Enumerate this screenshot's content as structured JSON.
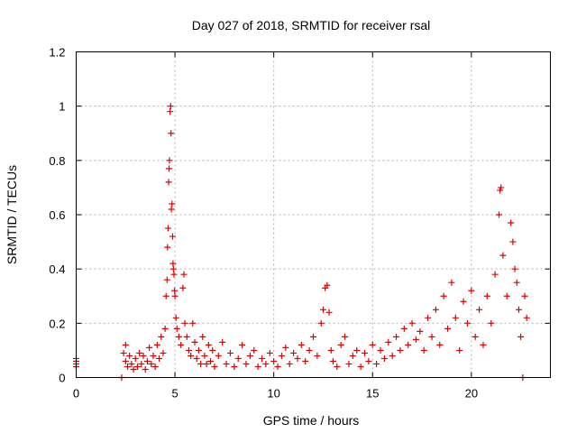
{
  "chart_data": {
    "type": "scatter",
    "title": "Day 027 of 2018, SRMTID for receiver rsal",
    "xlabel": "GPS time / hours",
    "ylabel": "SRMTID / TECUs",
    "xlim": [
      0,
      24
    ],
    "ylim": [
      0,
      1.2
    ],
    "xticks": [
      0,
      5,
      10,
      15,
      20
    ],
    "xtick_labels": [
      "0",
      "5",
      "10",
      "15",
      "20"
    ],
    "yticks": [
      0,
      0.2,
      0.4,
      0.6,
      0.8,
      1.0,
      1.2
    ],
    "ytick_labels": [
      "0",
      "0.2",
      "0.4",
      "0.6",
      "0.8",
      "1",
      "1.2"
    ],
    "grid": true,
    "marker": "+",
    "series": [
      {
        "name": "SRMTID",
        "color": "#e00000",
        "points": [
          [
            0.0,
            0.07
          ],
          [
            0.0,
            0.06
          ],
          [
            0.0,
            0.05
          ],
          [
            0.0,
            0.04
          ],
          [
            2.3,
            0.0
          ],
          [
            2.4,
            0.09
          ],
          [
            2.5,
            0.12
          ],
          [
            2.5,
            0.06
          ],
          [
            2.6,
            0.04
          ],
          [
            2.7,
            0.08
          ],
          [
            2.8,
            0.05
          ],
          [
            2.9,
            0.03
          ],
          [
            3.0,
            0.07
          ],
          [
            3.1,
            0.04
          ],
          [
            3.2,
            0.09
          ],
          [
            3.3,
            0.05
          ],
          [
            3.4,
            0.08
          ],
          [
            3.5,
            0.03
          ],
          [
            3.6,
            0.06
          ],
          [
            3.7,
            0.11
          ],
          [
            3.8,
            0.05
          ],
          [
            3.9,
            0.08
          ],
          [
            4.0,
            0.04
          ],
          [
            4.1,
            0.12
          ],
          [
            4.2,
            0.07
          ],
          [
            4.3,
            0.15
          ],
          [
            4.4,
            0.09
          ],
          [
            4.5,
            0.18
          ],
          [
            4.55,
            0.3
          ],
          [
            4.6,
            0.36
          ],
          [
            4.62,
            0.48
          ],
          [
            4.65,
            0.55
          ],
          [
            4.68,
            0.72
          ],
          [
            4.7,
            0.77
          ],
          [
            4.72,
            0.8
          ],
          [
            4.75,
            0.98
          ],
          [
            4.78,
            1.0
          ],
          [
            4.8,
            0.9
          ],
          [
            4.82,
            0.62
          ],
          [
            4.85,
            0.64
          ],
          [
            4.88,
            0.52
          ],
          [
            4.9,
            0.42
          ],
          [
            4.92,
            0.4
          ],
          [
            4.95,
            0.38
          ],
          [
            4.98,
            0.32
          ],
          [
            5.0,
            0.3
          ],
          [
            5.05,
            0.22
          ],
          [
            5.1,
            0.18
          ],
          [
            5.2,
            0.15
          ],
          [
            5.3,
            0.12
          ],
          [
            5.4,
            0.33
          ],
          [
            5.45,
            0.38
          ],
          [
            5.5,
            0.2
          ],
          [
            5.6,
            0.15
          ],
          [
            5.7,
            0.1
          ],
          [
            5.8,
            0.08
          ],
          [
            5.9,
            0.2
          ],
          [
            6.0,
            0.13
          ],
          [
            6.1,
            0.07
          ],
          [
            6.2,
            0.1
          ],
          [
            6.3,
            0.05
          ],
          [
            6.4,
            0.15
          ],
          [
            6.5,
            0.08
          ],
          [
            6.6,
            0.05
          ],
          [
            6.7,
            0.12
          ],
          [
            6.8,
            0.06
          ],
          [
            6.9,
            0.1
          ],
          [
            7.0,
            0.04
          ],
          [
            7.2,
            0.08
          ],
          [
            7.4,
            0.13
          ],
          [
            7.6,
            0.05
          ],
          [
            7.8,
            0.09
          ],
          [
            8.0,
            0.04
          ],
          [
            8.2,
            0.07
          ],
          [
            8.4,
            0.12
          ],
          [
            8.6,
            0.05
          ],
          [
            8.8,
            0.08
          ],
          [
            9.0,
            0.1
          ],
          [
            9.2,
            0.04
          ],
          [
            9.4,
            0.07
          ],
          [
            9.6,
            0.05
          ],
          [
            9.8,
            0.09
          ],
          [
            10.0,
            0.06
          ],
          [
            10.2,
            0.04
          ],
          [
            10.4,
            0.08
          ],
          [
            10.6,
            0.11
          ],
          [
            10.8,
            0.05
          ],
          [
            11.0,
            0.09
          ],
          [
            11.2,
            0.07
          ],
          [
            11.4,
            0.12
          ],
          [
            11.6,
            0.06
          ],
          [
            11.8,
            0.1
          ],
          [
            12.0,
            0.15
          ],
          [
            12.2,
            0.08
          ],
          [
            12.4,
            0.2
          ],
          [
            12.5,
            0.25
          ],
          [
            12.6,
            0.33
          ],
          [
            12.7,
            0.34
          ],
          [
            12.8,
            0.24
          ],
          [
            12.9,
            0.1
          ],
          [
            13.0,
            0.06
          ],
          [
            13.2,
            0.04
          ],
          [
            13.4,
            0.12
          ],
          [
            13.6,
            0.15
          ],
          [
            13.8,
            0.05
          ],
          [
            14.0,
            0.08
          ],
          [
            14.2,
            0.1
          ],
          [
            14.4,
            0.04
          ],
          [
            14.6,
            0.09
          ],
          [
            14.8,
            0.06
          ],
          [
            15.0,
            0.12
          ],
          [
            15.2,
            0.05
          ],
          [
            15.4,
            0.1
          ],
          [
            15.6,
            0.07
          ],
          [
            15.8,
            0.13
          ],
          [
            16.0,
            0.08
          ],
          [
            16.2,
            0.15
          ],
          [
            16.4,
            0.1
          ],
          [
            16.6,
            0.18
          ],
          [
            16.8,
            0.12
          ],
          [
            17.0,
            0.2
          ],
          [
            17.2,
            0.14
          ],
          [
            17.4,
            0.17
          ],
          [
            17.6,
            0.1
          ],
          [
            17.8,
            0.22
          ],
          [
            18.0,
            0.15
          ],
          [
            18.2,
            0.25
          ],
          [
            18.4,
            0.12
          ],
          [
            18.6,
            0.3
          ],
          [
            18.8,
            0.18
          ],
          [
            19.0,
            0.35
          ],
          [
            19.2,
            0.22
          ],
          [
            19.4,
            0.1
          ],
          [
            19.6,
            0.28
          ],
          [
            19.8,
            0.2
          ],
          [
            20.0,
            0.32
          ],
          [
            20.2,
            0.15
          ],
          [
            20.4,
            0.25
          ],
          [
            20.6,
            0.12
          ],
          [
            20.8,
            0.3
          ],
          [
            21.0,
            0.2
          ],
          [
            21.2,
            0.38
          ],
          [
            21.4,
            0.6
          ],
          [
            21.45,
            0.69
          ],
          [
            21.5,
            0.7
          ],
          [
            21.6,
            0.45
          ],
          [
            21.8,
            0.3
          ],
          [
            22.0,
            0.57
          ],
          [
            22.1,
            0.5
          ],
          [
            22.2,
            0.4
          ],
          [
            22.3,
            0.35
          ],
          [
            22.4,
            0.25
          ],
          [
            22.5,
            0.15
          ],
          [
            22.6,
            0.0
          ],
          [
            22.7,
            0.3
          ],
          [
            22.8,
            0.22
          ]
        ]
      }
    ]
  }
}
